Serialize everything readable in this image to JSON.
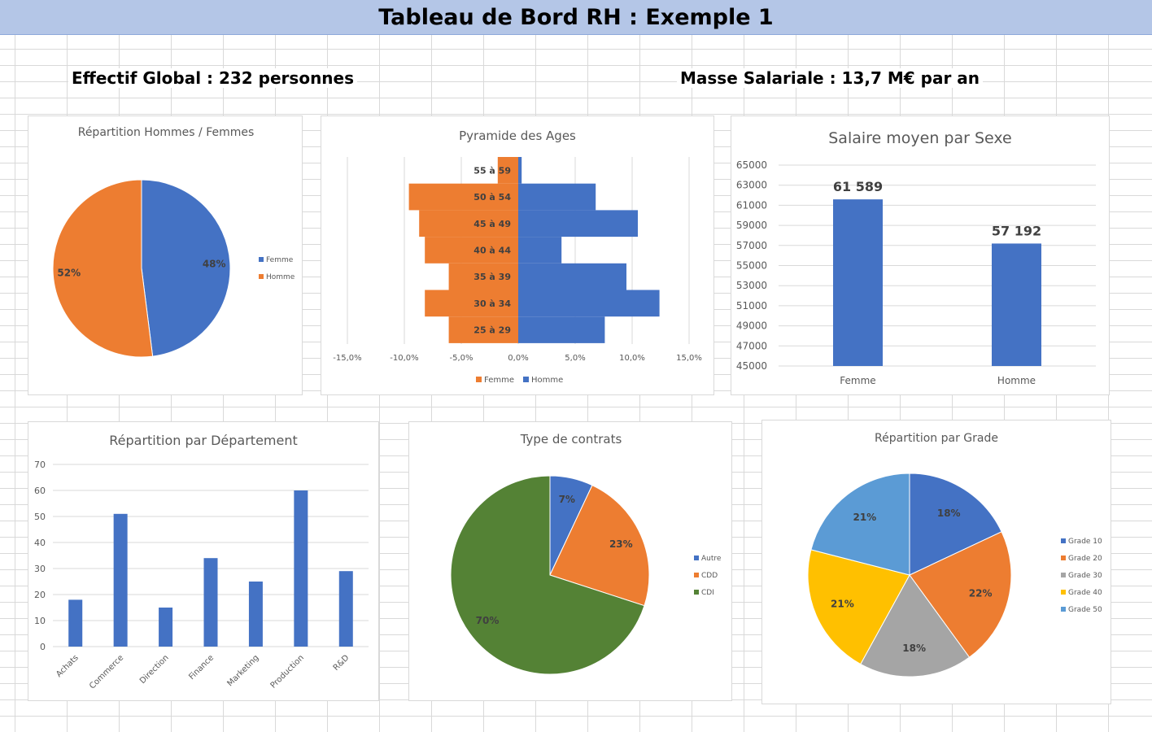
{
  "header": {
    "title": "Tableau de Bord RH : Exemple 1"
  },
  "kpis": {
    "effectif": "Effectif Global : 232 personnes",
    "masse": "Masse Salariale : 13,7 M€ par an"
  },
  "colors": {
    "blue": "#4472c4",
    "orange": "#ed7d31",
    "gray": "#a5a5a5",
    "yellow": "#ffc000",
    "lightblue": "#5b9bd5",
    "green": "#548235",
    "title_fill": "#b4c6e7"
  },
  "chart_data": [
    {
      "id": "gender",
      "type": "pie",
      "title": "Répartition Hommes / Femmes",
      "slices": [
        {
          "label": "Femme",
          "value": 48,
          "display": "48%",
          "color": "#4472c4"
        },
        {
          "label": "Homme",
          "value": 52,
          "display": "52%",
          "color": "#ed7d31"
        }
      ],
      "legend": "right"
    },
    {
      "id": "pyramid",
      "type": "bar",
      "orientation": "horizontal",
      "title": "Pyramide des Ages",
      "categories": [
        "55 à 59",
        "50 à 54",
        "45 à 49",
        "40 à 44",
        "35 à 39",
        "30 à 34",
        "25 à 29"
      ],
      "series": [
        {
          "name": "Femme",
          "values": [
            -1.8,
            -9.6,
            -8.7,
            -8.2,
            -6.1,
            -8.2,
            -6.1
          ],
          "color": "#ed7d31"
        },
        {
          "name": "Homme",
          "values": [
            0.3,
            6.8,
            10.5,
            3.8,
            9.5,
            12.4,
            7.6
          ],
          "color": "#4472c4"
        }
      ],
      "xlim": [
        -15,
        15
      ],
      "xticks": [
        "-15,0%",
        "-10,0%",
        "-5,0%",
        "0,0%",
        "5,0%",
        "10,0%",
        "15,0%"
      ],
      "grid": true,
      "legend": "bottom"
    },
    {
      "id": "salary",
      "type": "bar",
      "title": "Salaire moyen par Sexe",
      "categories": [
        "Femme",
        "Homme"
      ],
      "values": [
        61589,
        57192
      ],
      "data_labels": [
        "61 589",
        "57 192"
      ],
      "ylim": [
        45000,
        65000
      ],
      "yticks": [
        "45000",
        "47000",
        "49000",
        "51000",
        "53000",
        "55000",
        "57000",
        "59000",
        "61000",
        "63000",
        "65000"
      ],
      "grid": true,
      "color": "#4472c4"
    },
    {
      "id": "dept",
      "type": "bar",
      "title": "Répartition par Département",
      "categories": [
        "Achats",
        "Commerce",
        "Direction",
        "Finance",
        "Marketing",
        "Production",
        "R&D"
      ],
      "values": [
        18,
        51,
        15,
        34,
        25,
        60,
        29
      ],
      "ylim": [
        0,
        70
      ],
      "yticks": [
        "0",
        "10",
        "20",
        "30",
        "40",
        "50",
        "60",
        "70"
      ],
      "grid": true,
      "color": "#4472c4"
    },
    {
      "id": "contracts",
      "type": "pie",
      "title": "Type de contrats",
      "slices": [
        {
          "label": "Autre",
          "value": 7,
          "display": "7%",
          "color": "#4472c4"
        },
        {
          "label": "CDD",
          "value": 23,
          "display": "23%",
          "color": "#ed7d31"
        },
        {
          "label": "CDI",
          "value": 70,
          "display": "70%",
          "color": "#548235"
        }
      ],
      "legend": "right"
    },
    {
      "id": "grade",
      "type": "pie",
      "title": "Répartition par Grade",
      "slices": [
        {
          "label": "Grade 10",
          "value": 18,
          "display": "18%",
          "color": "#4472c4"
        },
        {
          "label": "Grade 20",
          "value": 22,
          "display": "22%",
          "color": "#ed7d31"
        },
        {
          "label": "Grade 30",
          "value": 18,
          "display": "18%",
          "color": "#a5a5a5"
        },
        {
          "label": "Grade 40",
          "value": 21,
          "display": "21%",
          "color": "#ffc000"
        },
        {
          "label": "Grade 50",
          "value": 21,
          "display": "21%",
          "color": "#5b9bd5"
        }
      ],
      "legend": "right"
    }
  ]
}
